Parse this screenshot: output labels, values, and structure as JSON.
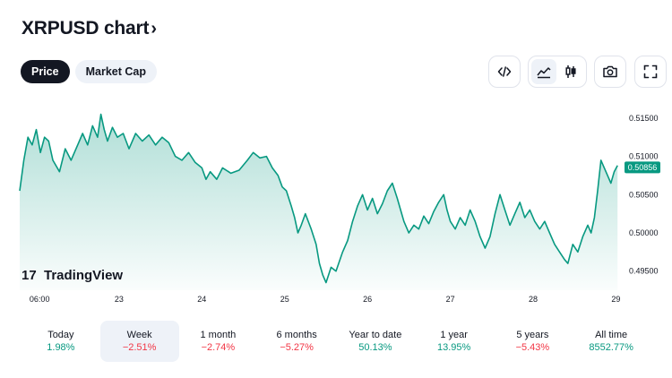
{
  "header": {
    "title": "XRPUSD chart",
    "chevron": "›"
  },
  "tabs": [
    {
      "label": "Price",
      "active": true
    },
    {
      "label": "Market Cap",
      "active": false
    }
  ],
  "toolbar": [
    {
      "name": "embed-code-icon",
      "glyph": "</>"
    },
    {
      "name": "area-chart-icon",
      "active": true
    },
    {
      "name": "candlestick-icon",
      "active": false
    },
    {
      "name": "camera-icon"
    },
    {
      "name": "fullscreen-icon"
    }
  ],
  "watermark": {
    "text": "TradingView",
    "logo": "17"
  },
  "chart_data": {
    "type": "area",
    "symbol": "XRPUSD",
    "line_color": "#089981",
    "last_value_label": "0.50856",
    "last_value": 0.50856,
    "ylim": [
      0.4925,
      0.5178
    ],
    "y_ticks": [
      "0.51500",
      "0.51000",
      "0.50500",
      "0.50000",
      "0.49500"
    ],
    "y_tick_values": [
      0.515,
      0.51,
      0.505,
      0.5,
      0.495
    ],
    "x_ticks": [
      "06:00",
      "23",
      "24",
      "25",
      "26",
      "27",
      "28",
      "29"
    ],
    "x_tick_positions": [
      0.04,
      1,
      2,
      3,
      4,
      5,
      6,
      7
    ],
    "x_range_days": [
      -0.2,
      7.05
    ],
    "series": [
      {
        "values": [
          [
            -0.2,
            0.5055
          ],
          [
            -0.15,
            0.5095
          ],
          [
            -0.1,
            0.5125
          ],
          [
            -0.05,
            0.5115
          ],
          [
            0.0,
            0.5135
          ],
          [
            0.05,
            0.5105
          ],
          [
            0.1,
            0.5125
          ],
          [
            0.15,
            0.512
          ],
          [
            0.2,
            0.5095
          ],
          [
            0.28,
            0.508
          ],
          [
            0.35,
            0.511
          ],
          [
            0.42,
            0.5095
          ],
          [
            0.5,
            0.5115
          ],
          [
            0.56,
            0.513
          ],
          [
            0.62,
            0.5115
          ],
          [
            0.68,
            0.514
          ],
          [
            0.74,
            0.5125
          ],
          [
            0.78,
            0.5155
          ],
          [
            0.82,
            0.5135
          ],
          [
            0.86,
            0.512
          ],
          [
            0.92,
            0.5138
          ],
          [
            0.98,
            0.5125
          ],
          [
            1.05,
            0.513
          ],
          [
            1.12,
            0.511
          ],
          [
            1.2,
            0.513
          ],
          [
            1.28,
            0.512
          ],
          [
            1.36,
            0.5128
          ],
          [
            1.44,
            0.5115
          ],
          [
            1.52,
            0.5125
          ],
          [
            1.6,
            0.5118
          ],
          [
            1.68,
            0.51
          ],
          [
            1.76,
            0.5095
          ],
          [
            1.84,
            0.5105
          ],
          [
            1.92,
            0.5092
          ],
          [
            2.0,
            0.5085
          ],
          [
            2.05,
            0.507
          ],
          [
            2.1,
            0.508
          ],
          [
            2.18,
            0.507
          ],
          [
            2.25,
            0.5085
          ],
          [
            2.35,
            0.5078
          ],
          [
            2.45,
            0.5082
          ],
          [
            2.55,
            0.5095
          ],
          [
            2.62,
            0.5105
          ],
          [
            2.7,
            0.5098
          ],
          [
            2.78,
            0.51
          ],
          [
            2.85,
            0.5085
          ],
          [
            2.92,
            0.5075
          ],
          [
            2.97,
            0.506
          ],
          [
            3.02,
            0.5055
          ],
          [
            3.08,
            0.5035
          ],
          [
            3.12,
            0.502
          ],
          [
            3.16,
            0.5
          ],
          [
            3.2,
            0.501
          ],
          [
            3.25,
            0.5025
          ],
          [
            3.32,
            0.5005
          ],
          [
            3.38,
            0.4985
          ],
          [
            3.42,
            0.496
          ],
          [
            3.46,
            0.4945
          ],
          [
            3.5,
            0.4935
          ],
          [
            3.56,
            0.4955
          ],
          [
            3.62,
            0.495
          ],
          [
            3.7,
            0.4975
          ],
          [
            3.76,
            0.499
          ],
          [
            3.82,
            0.5015
          ],
          [
            3.88,
            0.5035
          ],
          [
            3.94,
            0.505
          ],
          [
            4.0,
            0.503
          ],
          [
            4.06,
            0.5045
          ],
          [
            4.12,
            0.5025
          ],
          [
            4.18,
            0.5038
          ],
          [
            4.24,
            0.5055
          ],
          [
            4.3,
            0.5065
          ],
          [
            4.36,
            0.5045
          ],
          [
            4.4,
            0.503
          ],
          [
            4.44,
            0.5015
          ],
          [
            4.5,
            0.5
          ],
          [
            4.56,
            0.501
          ],
          [
            4.62,
            0.5005
          ],
          [
            4.68,
            0.5022
          ],
          [
            4.74,
            0.5012
          ],
          [
            4.8,
            0.5028
          ],
          [
            4.86,
            0.504
          ],
          [
            4.92,
            0.505
          ],
          [
            4.96,
            0.503
          ],
          [
            5.0,
            0.5015
          ],
          [
            5.06,
            0.5005
          ],
          [
            5.12,
            0.502
          ],
          [
            5.18,
            0.501
          ],
          [
            5.24,
            0.503
          ],
          [
            5.3,
            0.5015
          ],
          [
            5.36,
            0.4995
          ],
          [
            5.42,
            0.498
          ],
          [
            5.48,
            0.4995
          ],
          [
            5.54,
            0.5025
          ],
          [
            5.6,
            0.505
          ],
          [
            5.66,
            0.503
          ],
          [
            5.72,
            0.501
          ],
          [
            5.78,
            0.5025
          ],
          [
            5.84,
            0.504
          ],
          [
            5.9,
            0.502
          ],
          [
            5.96,
            0.503
          ],
          [
            6.02,
            0.5015
          ],
          [
            6.08,
            0.5005
          ],
          [
            6.14,
            0.5015
          ],
          [
            6.2,
            0.5
          ],
          [
            6.26,
            0.4985
          ],
          [
            6.32,
            0.4975
          ],
          [
            6.38,
            0.4965
          ],
          [
            6.42,
            0.496
          ],
          [
            6.48,
            0.4985
          ],
          [
            6.54,
            0.4975
          ],
          [
            6.6,
            0.4995
          ],
          [
            6.66,
            0.501
          ],
          [
            6.7,
            0.5
          ],
          [
            6.74,
            0.502
          ],
          [
            6.78,
            0.5055
          ],
          [
            6.82,
            0.5095
          ],
          [
            6.86,
            0.5085
          ],
          [
            6.9,
            0.5075
          ],
          [
            6.94,
            0.5065
          ],
          [
            6.98,
            0.508
          ],
          [
            7.02,
            0.5088
          ]
        ]
      }
    ]
  },
  "periods": [
    {
      "label": "Today",
      "value": "1.98%",
      "direction": "up",
      "selected": false
    },
    {
      "label": "Week",
      "value": "−2.51%",
      "direction": "down",
      "selected": true
    },
    {
      "label": "1 month",
      "value": "−2.74%",
      "direction": "down",
      "selected": false
    },
    {
      "label": "6 months",
      "value": "−5.27%",
      "direction": "down",
      "selected": false
    },
    {
      "label": "Year to date",
      "value": "50.13%",
      "direction": "up",
      "selected": false
    },
    {
      "label": "1 year",
      "value": "13.95%",
      "direction": "up",
      "selected": false
    },
    {
      "label": "5 years",
      "value": "−5.43%",
      "direction": "down",
      "selected": false
    },
    {
      "label": "All time",
      "value": "8552.77%",
      "direction": "up",
      "selected": false
    }
  ]
}
